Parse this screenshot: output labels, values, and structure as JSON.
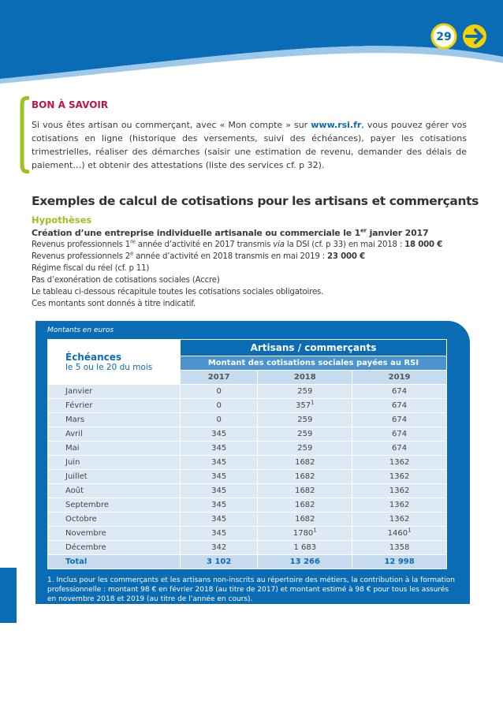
{
  "header": {
    "page_number": "29"
  },
  "bon_a_savoir": {
    "title": "BON À SAVOIR",
    "text_before": "Si vous êtes artisan ou commerçant, avec « Mon compte » sur ",
    "link": "www.rsi.fr",
    "text_after": ", vous pouvez gérer vos cotisations en ligne (historique des versements, suivi des échéances), payer les cotisations trimestrielles, réaliser des démarches (saisir une estimation de revenu, demander des délais de paiement…) et obtenir des attestations (liste des services cf. p 32)."
  },
  "section": {
    "title": "Exemples de calcul de cotisations pour les artisans et commerçants",
    "subtitle": "Hypothèses",
    "heading": [
      "Création d’une entreprise individuelle artisanale ou commerciale le 1",
      "er",
      " janvier 2017"
    ],
    "line1": [
      "Revenus professionnels 1",
      "re",
      " année d’activité en 2017 transmis ",
      "via",
      " la DSI (cf. p 33) en mai 2018 : ",
      "18 000 €"
    ],
    "line2": [
      "Revenus professionnels 2",
      "e",
      " année d’activité en 2018 transmis en mai 2019 : ",
      "23 000 €"
    ],
    "lines": [
      "Régime fiscal du réel (cf. p 11)",
      "Pas d’exonération de cotisations sociales (Accre)",
      "Le tableau ci-dessous récapitule toutes les cotisations sociales obligatoires.",
      "Ces montants sont donnés à titre indicatif."
    ]
  },
  "table": {
    "caption": "Montants en euros",
    "col0_title": "Échéances",
    "col0_subtitle": "le 5 ou le 20 du mois",
    "group_title": "Artisans / commerçants",
    "group_subtitle": "Montant des cotisations sociales payées au RSI",
    "years": [
      "2017",
      "2018",
      "2019"
    ],
    "rows": [
      {
        "month": "Janvier",
        "cells": [
          "0",
          "259",
          "674"
        ]
      },
      {
        "month": "Février",
        "cells": [
          "0",
          {
            "text": "357",
            "note": "1"
          },
          "674"
        ]
      },
      {
        "month": "Mars",
        "cells": [
          "0",
          "259",
          "674"
        ]
      },
      {
        "month": "Avril",
        "cells": [
          "345",
          "259",
          "674"
        ]
      },
      {
        "month": "Mai",
        "cells": [
          "345",
          "259",
          "674"
        ]
      },
      {
        "month": "Juin",
        "cells": [
          "345",
          "1682",
          "1362"
        ]
      },
      {
        "month": "Juillet",
        "cells": [
          "345",
          "1682",
          "1362"
        ]
      },
      {
        "month": "Août",
        "cells": [
          "345",
          "1682",
          "1362"
        ]
      },
      {
        "month": "Septembre",
        "cells": [
          "345",
          "1682",
          "1362"
        ]
      },
      {
        "month": "Octobre",
        "cells": [
          "345",
          "1682",
          "1362"
        ]
      },
      {
        "month": "Novembre",
        "cells": [
          "345",
          {
            "text": "1780",
            "note": "1"
          },
          {
            "text": "1460",
            "note": "1"
          }
        ]
      },
      {
        "month": "Décembre",
        "cells": [
          "342",
          "1 683",
          "1358"
        ]
      }
    ],
    "total": {
      "month": "Total",
      "cells": [
        "3 102",
        "13 266",
        "12 998"
      ]
    },
    "footnote": "1. Inclus pour les commerçants et les artisans non-inscrits au répertoire des métiers, la contribution à la formation professionnelle : montant 98 € en février 2018 (au titre de 2017) et montant estimé à 98 € pour tous les assurés en novembre 2018 et 2019 (au titre de l’année en cours)."
  }
}
